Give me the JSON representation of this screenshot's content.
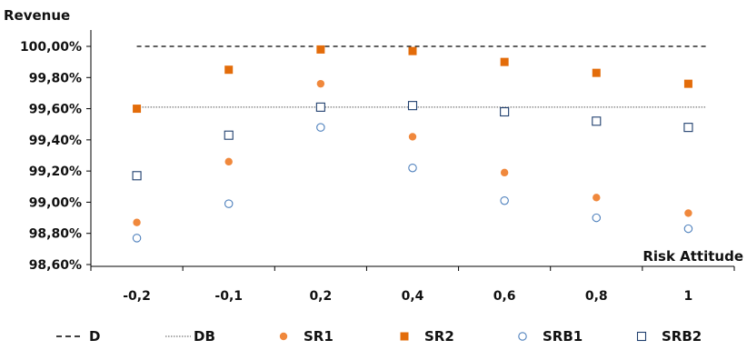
{
  "chart_data": {
    "type": "scatter",
    "ylabel": "Revenue",
    "xlabel": "Risk Attitude",
    "categories": [
      "-0,2",
      "-0,1",
      "0,2",
      "0,4",
      "0,6",
      "0,8",
      "1"
    ],
    "yticks": [
      "98,60%",
      "98,80%",
      "99,00%",
      "99,20%",
      "99,40%",
      "99,60%",
      "99,80%",
      "100,00%"
    ],
    "ylim": [
      98.6,
      100.0
    ],
    "grid": false,
    "legend_position": "bottom",
    "series": [
      {
        "name": "D",
        "kind": "dashed-line",
        "color": "#000000",
        "values": [
          100.0,
          100.0,
          100.0,
          100.0,
          100.0,
          100.0,
          100.0
        ]
      },
      {
        "name": "DB",
        "kind": "dotted-line",
        "color": "#555555",
        "values": [
          99.61,
          99.61,
          99.61,
          99.61,
          99.61,
          99.61,
          99.61
        ]
      },
      {
        "name": "SR1",
        "kind": "filled-circle",
        "color": "#F0883C",
        "values": [
          98.87,
          99.26,
          99.76,
          99.42,
          99.19,
          99.03,
          98.93
        ]
      },
      {
        "name": "SR2",
        "kind": "filled-square",
        "color": "#E36C0A",
        "values": [
          99.6,
          99.85,
          99.98,
          99.97,
          99.9,
          99.83,
          99.76
        ]
      },
      {
        "name": "SRB1",
        "kind": "open-circle",
        "color": "#4F81BD",
        "values": [
          98.77,
          98.99,
          99.48,
          99.22,
          99.01,
          98.9,
          98.83
        ]
      },
      {
        "name": "SRB2",
        "kind": "open-square",
        "color": "#1F3F6E",
        "values": [
          99.17,
          99.43,
          99.61,
          99.62,
          99.58,
          99.52,
          99.48
        ]
      }
    ]
  }
}
